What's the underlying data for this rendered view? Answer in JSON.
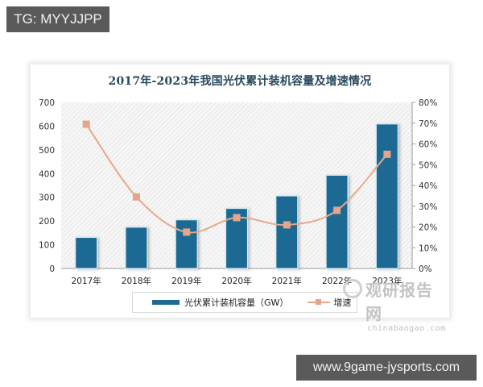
{
  "watermarks": {
    "top_tag": "TG: MYYJJPP",
    "bottom_tag": "www.9game-jysports.com",
    "source_cn": "观研报告网",
    "source_en": "chinabaogao.com"
  },
  "chart_data": {
    "type": "bar",
    "title": "2017年-2023年我国光伏累计装机容量及增速情况",
    "categories": [
      "2017年",
      "2018年",
      "2019年",
      "2020年",
      "2021年",
      "2022年",
      "2023年"
    ],
    "series": [
      {
        "name": "光伏累计装机容量（GW）",
        "type": "bar",
        "axis": "left",
        "color": "#1d6b93",
        "values": [
          131,
          174,
          205,
          253,
          306,
          393,
          609
        ]
      },
      {
        "name": "增速",
        "type": "line",
        "axis": "right",
        "color": "#e6a488",
        "values": [
          69.5,
          34.5,
          17.5,
          24.5,
          21.0,
          28.0,
          55.0
        ],
        "unit": "%"
      }
    ],
    "left_axis": {
      "ylim": [
        0,
        700
      ],
      "ticks": [
        "0",
        "100",
        "200",
        "300",
        "400",
        "500",
        "600",
        "700"
      ]
    },
    "right_axis": {
      "ylim": [
        0,
        80
      ],
      "ticks": [
        "0%",
        "10%",
        "20%",
        "30%",
        "40%",
        "50%",
        "60%",
        "70%",
        "80%"
      ]
    },
    "xlabel": "",
    "ylabel": "",
    "grid": false,
    "legend_position": "bottom",
    "background": "diagonal hatch"
  },
  "legend": {
    "bar_label": "光伏累计装机容量（GW）",
    "line_label": "增速"
  }
}
